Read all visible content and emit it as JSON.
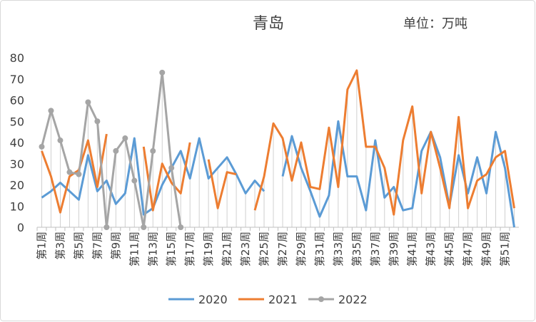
{
  "chart_data": {
    "type": "line",
    "title": "青岛",
    "annotation": "单位：万吨",
    "categories": [
      "第1周",
      null,
      "第3周",
      null,
      "第5周",
      null,
      "第7周",
      null,
      "第9周",
      null,
      "第11周",
      null,
      "第13周",
      null,
      "第15周",
      null,
      "第17周",
      null,
      "第19周",
      null,
      "第21周",
      null,
      "第23周",
      null,
      "第25周",
      null,
      "第27周",
      null,
      "第29周",
      null,
      "第31周",
      null,
      "第33周",
      null,
      "第35周",
      null,
      "第37周",
      null,
      "第39周",
      null,
      "第41周",
      null,
      "第43周",
      null,
      "第45周",
      null,
      "第47周",
      null,
      "第49周",
      null,
      "第51周",
      null
    ],
    "series": [
      {
        "name": "2020",
        "color": "#5b9bd5",
        "markers": false,
        "values": [
          14,
          17,
          21,
          17,
          13,
          34,
          17,
          22,
          11,
          16,
          42,
          6,
          9,
          20,
          28,
          36,
          23,
          42,
          23,
          28,
          33,
          25,
          16,
          22,
          17,
          null,
          24,
          43,
          28,
          17,
          5,
          15,
          50,
          24,
          24,
          8,
          41,
          14,
          19,
          8,
          9,
          36,
          45,
          33,
          10,
          34,
          16,
          33,
          16,
          45,
          28,
          0
        ]
      },
      {
        "name": "2021",
        "color": "#ed7d31",
        "markers": false,
        "values": [
          36,
          24,
          7,
          24,
          27,
          41,
          19,
          44,
          null,
          null,
          null,
          38,
          8,
          30,
          21,
          16,
          40,
          null,
          32,
          9,
          26,
          25,
          null,
          8,
          24,
          49,
          42,
          22,
          40,
          19,
          18,
          47,
          19,
          65,
          74,
          38,
          38,
          28,
          6,
          41,
          57,
          16,
          45,
          28,
          9,
          52,
          9,
          22,
          25,
          33,
          36,
          9
        ]
      },
      {
        "name": "2022",
        "color": "#a5a5a5",
        "markers": true,
        "values": [
          38,
          55,
          41,
          26,
          25,
          59,
          50,
          0,
          36,
          42,
          22,
          0,
          36,
          73,
          28,
          0,
          null,
          null,
          null,
          null,
          null,
          null,
          null,
          null,
          null,
          null,
          null,
          null,
          null,
          null,
          null,
          null,
          null,
          null,
          null,
          null,
          null,
          null,
          null,
          null,
          null,
          null,
          null,
          null,
          null,
          null,
          null,
          null,
          null,
          null,
          null,
          null
        ]
      }
    ],
    "ylim": [
      0,
      80
    ],
    "yticks": [
      0,
      10,
      20,
      30,
      40,
      50,
      60,
      70,
      80
    ],
    "drop_lines": true,
    "legend": "bottom"
  }
}
